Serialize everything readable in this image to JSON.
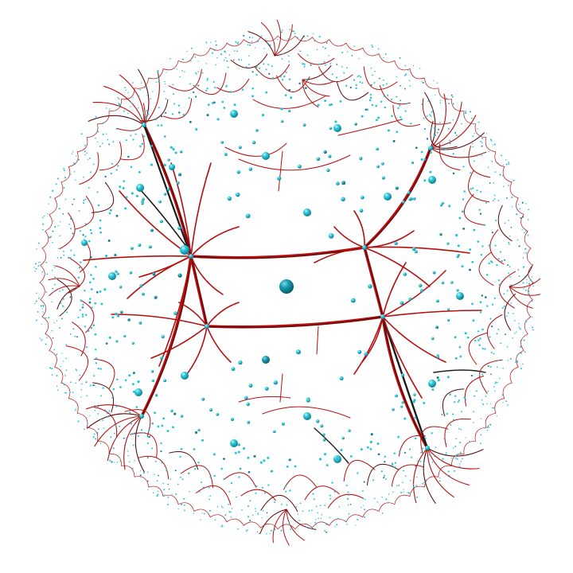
{
  "scene": {
    "background": "#ffffff",
    "disk": "hyperbolic-disk",
    "palette": {
      "edge_main": "#b30f0f",
      "edge_dark": "#5a0a0a",
      "edge_black": "#1a1a1a",
      "node": "#22c3d8",
      "node_dark": "#0f7f92",
      "node_highlight": "#bff3fb"
    }
  }
}
